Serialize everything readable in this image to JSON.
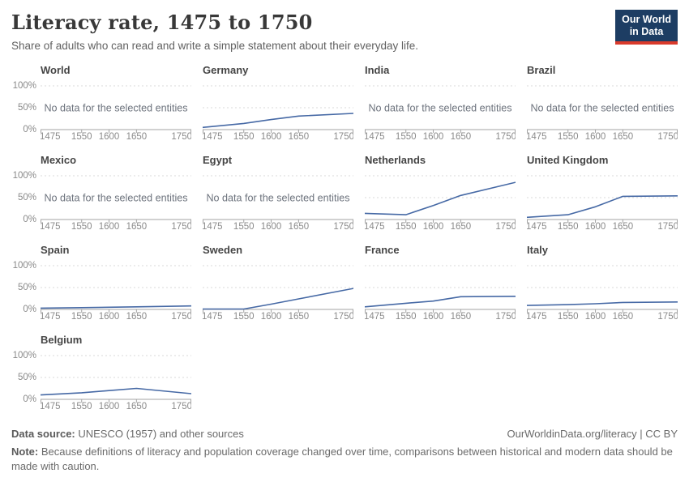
{
  "header": {
    "title": "Literacy rate, 1475 to 1750",
    "subtitle": "Share of adults who can read and write a simple statement about their everyday life."
  },
  "logo": {
    "line1": "Our World",
    "line2": "in Data",
    "bg": "#1d3d63",
    "accent": "#d93a2b"
  },
  "chart_data": {
    "type": "line",
    "x": [
      1475,
      1550,
      1600,
      1650,
      1750
    ],
    "xlim": [
      1475,
      1750
    ],
    "ylim": [
      0,
      100
    ],
    "y_tick_labels": [
      "100%",
      "50%",
      "0%"
    ],
    "y_tick_values": [
      100,
      50,
      0
    ],
    "grid": "dashed horizontal at 50% and 100%",
    "legend_position": "none",
    "line_color": "#4669a5",
    "no_data_label": "No data for the selected entities",
    "facets": [
      {
        "name": "World",
        "show_y_axis": true,
        "values": null
      },
      {
        "name": "Germany",
        "show_y_axis": false,
        "values": [
          5,
          14,
          23,
          31,
          37
        ]
      },
      {
        "name": "India",
        "show_y_axis": false,
        "values": null
      },
      {
        "name": "Brazil",
        "show_y_axis": false,
        "values": null
      },
      {
        "name": "Mexico",
        "show_y_axis": true,
        "values": null
      },
      {
        "name": "Egypt",
        "show_y_axis": false,
        "values": null
      },
      {
        "name": "Netherlands",
        "show_y_axis": false,
        "values": [
          14,
          11,
          32,
          55,
          85
        ]
      },
      {
        "name": "United Kingdom",
        "show_y_axis": false,
        "values": [
          5,
          11,
          29,
          53,
          54
        ]
      },
      {
        "name": "Spain",
        "show_y_axis": true,
        "values": [
          3,
          4,
          5,
          6,
          8
        ]
      },
      {
        "name": "Sweden",
        "show_y_axis": false,
        "values": [
          1,
          1,
          12,
          24,
          48
        ]
      },
      {
        "name": "France",
        "show_y_axis": false,
        "values": [
          6,
          14,
          19,
          29,
          30
        ]
      },
      {
        "name": "Italy",
        "show_y_axis": false,
        "values": [
          9,
          11,
          13,
          16,
          17
        ]
      },
      {
        "name": "Belgium",
        "show_y_axis": true,
        "values": [
          10,
          15,
          20,
          25,
          13
        ]
      }
    ]
  },
  "footer": {
    "source_label": "Data source:",
    "source_text": " UNESCO (1957) and other sources",
    "rights": "OurWorldinData.org/literacy | CC BY",
    "note_label": "Note:",
    "note_text": " Because definitions of literacy and population coverage changed over time, comparisons between historical and modern data should be made with caution."
  },
  "colors": {
    "axis": "#a3a3a3",
    "gridline": "#d9d9d9",
    "tick_label": "#8a8a8a",
    "no_data_text": "#6d737d"
  }
}
